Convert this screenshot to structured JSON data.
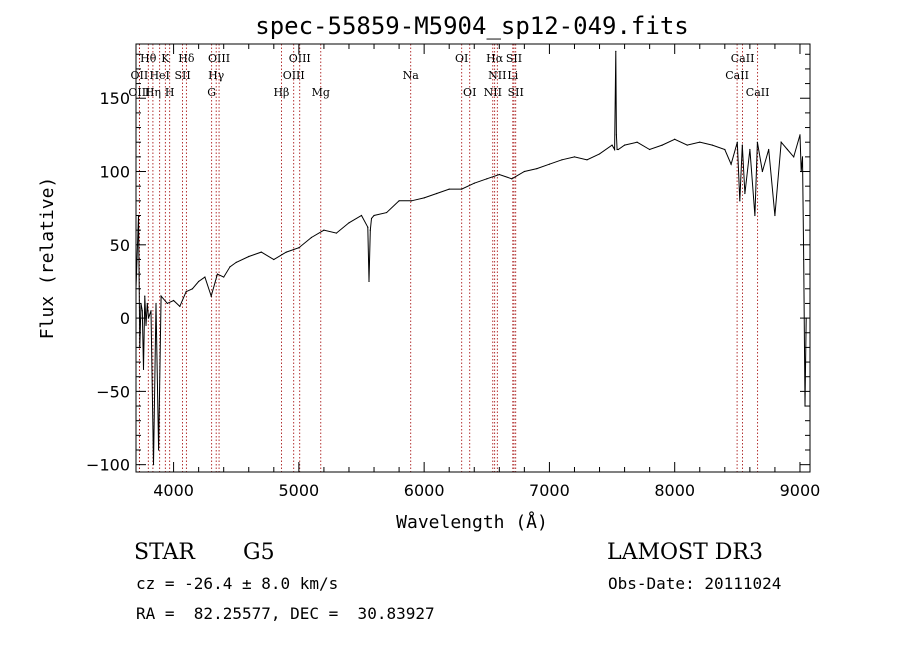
{
  "chart_data": {
    "type": "line",
    "title": "spec-55859-M5904_sp12-049.fits",
    "xlabel": "Wavelength (Å)",
    "ylabel": "Flux (relative)",
    "xlim": [
      3700,
      9080
    ],
    "ylim": [
      -105,
      187
    ],
    "xticks": [
      4000,
      5000,
      6000,
      7000,
      8000,
      9000
    ],
    "yticks": [
      -100,
      -50,
      0,
      50,
      100,
      150
    ],
    "series": [
      {
        "name": "flux",
        "x": [
          3700,
          3720,
          3730,
          3740,
          3750,
          3760,
          3770,
          3780,
          3790,
          3800,
          3820,
          3840,
          3860,
          3880,
          3900,
          3950,
          4000,
          4050,
          4100,
          4150,
          4200,
          4250,
          4300,
          4350,
          4400,
          4450,
          4500,
          4600,
          4700,
          4800,
          4900,
          5000,
          5100,
          5200,
          5300,
          5400,
          5500,
          5550,
          5560,
          5570,
          5580,
          5600,
          5700,
          5800,
          5900,
          6000,
          6100,
          6200,
          6300,
          6400,
          6500,
          6600,
          6700,
          6800,
          6900,
          7000,
          7100,
          7200,
          7300,
          7400,
          7500,
          7520,
          7530,
          7535,
          7540,
          7550,
          7600,
          7700,
          7800,
          7900,
          8000,
          8100,
          8200,
          8300,
          8400,
          8450,
          8500,
          8520,
          8540,
          8560,
          8600,
          8640,
          8660,
          8700,
          8750,
          8800,
          8850,
          8900,
          8950,
          9000,
          9010,
          9020,
          9030,
          9040,
          9050
        ],
        "y": [
          20,
          70,
          -20,
          10,
          5,
          -35,
          15,
          -5,
          10,
          0,
          5,
          -100,
          10,
          -90,
          15,
          10,
          12,
          8,
          18,
          20,
          25,
          28,
          15,
          30,
          28,
          35,
          38,
          42,
          45,
          40,
          45,
          48,
          55,
          60,
          58,
          65,
          70,
          62,
          25,
          60,
          68,
          70,
          72,
          80,
          80,
          82,
          85,
          88,
          88,
          92,
          95,
          98,
          95,
          100,
          102,
          105,
          108,
          110,
          108,
          112,
          118,
          115,
          182,
          125,
          115,
          115,
          118,
          120,
          115,
          118,
          122,
          118,
          120,
          118,
          115,
          105,
          120,
          80,
          118,
          85,
          115,
          70,
          120,
          100,
          115,
          70,
          120,
          115,
          110,
          125,
          100,
          110,
          40,
          -60,
          0
        ]
      }
    ],
    "lines": [
      {
        "label": "Hθ",
        "x": 3798,
        "row": 1
      },
      {
        "label": "K",
        "x": 3934,
        "row": 1
      },
      {
        "label": "Hδ",
        "x": 4102,
        "row": 1
      },
      {
        "label": "OIII",
        "x": 4363,
        "row": 1
      },
      {
        "label": "OIII",
        "x": 5007,
        "row": 1
      },
      {
        "label": "OI",
        "x": 6300,
        "row": 1
      },
      {
        "label": "Hα",
        "x": 6563,
        "row": 1
      },
      {
        "label": "SII",
        "x": 6717,
        "row": 1
      },
      {
        "label": "CaII",
        "x": 8542,
        "row": 1
      },
      {
        "label": "OII",
        "x": 3727,
        "row": 2
      },
      {
        "label": "HeI",
        "x": 3889,
        "row": 2
      },
      {
        "label": "SII",
        "x": 4072,
        "row": 2
      },
      {
        "label": "Hγ",
        "x": 4340,
        "row": 2
      },
      {
        "label": "OIII",
        "x": 4959,
        "row": 2
      },
      {
        "label": "Na",
        "x": 5893,
        "row": 2
      },
      {
        "label": "NII",
        "x": 6584,
        "row": 2
      },
      {
        "label": "Li",
        "x": 6708,
        "row": 2
      },
      {
        "label": "CaII",
        "x": 8498,
        "row": 2
      },
      {
        "label": "OIII",
        "x": 3727,
        "row": 3
      },
      {
        "label": "Hη",
        "x": 3835,
        "row": 3
      },
      {
        "label": "H",
        "x": 3969,
        "row": 3
      },
      {
        "label": "G",
        "x": 4304,
        "row": 3
      },
      {
        "label": "Hβ",
        "x": 4861,
        "row": 3
      },
      {
        "label": "Mg",
        "x": 5175,
        "row": 3
      },
      {
        "label": "OI",
        "x": 6364,
        "row": 3
      },
      {
        "label": "NII",
        "x": 6548,
        "row": 3
      },
      {
        "label": "SII",
        "x": 6731,
        "row": 3
      },
      {
        "label": "CaII",
        "x": 8662,
        "row": 3
      }
    ]
  },
  "info": {
    "object_class": "STAR",
    "subclass": "G5",
    "survey": "LAMOST DR3",
    "cz": "cz = -26.4 ± 8.0 km/s",
    "obs_date": "Obs-Date: 20111024",
    "coords": "RA =  82.25577, DEC =  30.83927"
  }
}
